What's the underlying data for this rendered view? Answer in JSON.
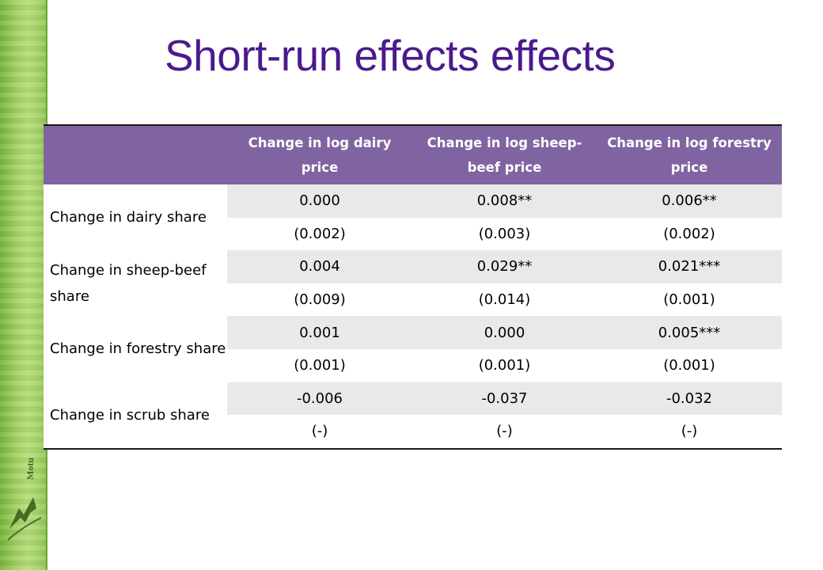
{
  "slide": {
    "title": "Short-run effects effects",
    "logo_text": "Motu"
  },
  "table": {
    "headers": [
      "",
      "Change in log dairy price",
      "Change in log sheep-beef price",
      "Change in log forestry price"
    ],
    "rows": [
      {
        "label": "Change in dairy share",
        "estimates": [
          "0.000",
          "0.008**",
          "0.006**"
        ],
        "std_errors": [
          "(0.002)",
          "(0.003)",
          "(0.002)"
        ]
      },
      {
        "label": "Change in sheep-beef share",
        "estimates": [
          "0.004",
          "0.029**",
          "0.021***"
        ],
        "std_errors": [
          "(0.009)",
          "(0.014)",
          "(0.001)"
        ]
      },
      {
        "label": "Change in forestry share",
        "estimates": [
          "0.001",
          "0.000",
          "0.005***"
        ],
        "std_errors": [
          "(0.001)",
          "(0.001)",
          "(0.001)"
        ]
      },
      {
        "label": "Change in scrub share",
        "estimates": [
          "-0.006",
          "-0.037",
          "-0.032"
        ],
        "std_errors": [
          "(-)",
          "(-)",
          "(-)"
        ]
      }
    ]
  },
  "colors": {
    "title": "#4b1a8c",
    "header_bg": "#8064a2",
    "shaded_row": "#e9e9e9",
    "side_strip": "#9fcd5f"
  }
}
